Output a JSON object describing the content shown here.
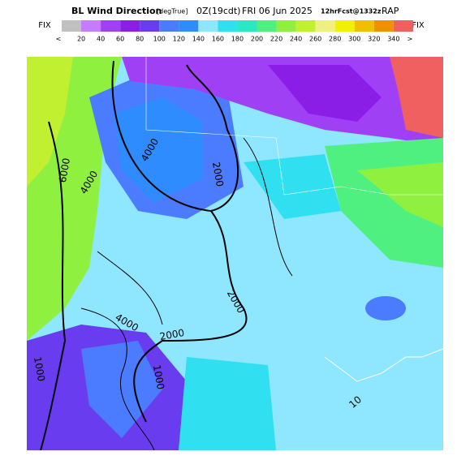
{
  "header": {
    "title": "BL Wind Direction",
    "units": "[degTrue]",
    "valid": "0Z(19cdt)",
    "date": "FRI 06 Jun 2025",
    "forecast": "12hrFcst@1332z",
    "model": "RAP"
  },
  "colorbar": {
    "left_label": "FIX",
    "right_label": "FIX",
    "low_end": "<",
    "high_end": ">",
    "labels": [
      "20",
      "40",
      "60",
      "80",
      "100",
      "120",
      "140",
      "160",
      "180",
      "200",
      "220",
      "240",
      "260",
      "280",
      "300",
      "320",
      "340"
    ],
    "colors": [
      "#c0c0c0",
      "#c47dff",
      "#a040f5",
      "#8a1ee6",
      "#6a3cf0",
      "#4b7cff",
      "#2f8cff",
      "#8fe6ff",
      "#30e0f0",
      "#2ae8c4",
      "#50f080",
      "#90f040",
      "#c0f030",
      "#f0f080",
      "#f0f000",
      "#f0c000",
      "#f09000",
      "#f06060"
    ]
  },
  "contour_labels": [
    "6000",
    "4000",
    "4000",
    "2000",
    "2000",
    "2000",
    "4000",
    "1000",
    "1000",
    "10"
  ]
}
